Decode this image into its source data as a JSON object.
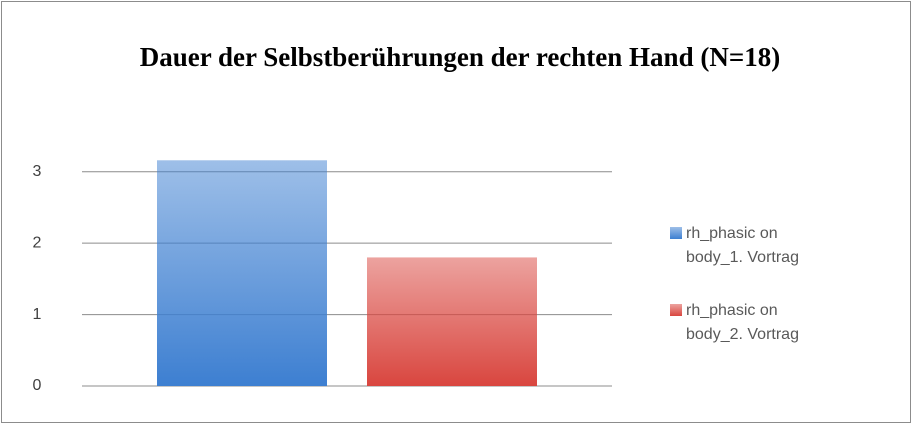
{
  "chart_data": {
    "type": "bar",
    "title": "Dauer der Selbstberührungen der rechten Hand (N=18)",
    "categories": [
      null
    ],
    "series": [
      {
        "name": "rh_phasic on body_1. Vortrag",
        "color": "#3d7fd1",
        "values": [
          3.16
        ]
      },
      {
        "name": "rh_phasic on body_2. Vortrag",
        "color": "#d9463f",
        "values": [
          1.8
        ]
      }
    ],
    "ylim": [
      0,
      3.5
    ],
    "yticks": [
      0,
      1,
      2,
      3
    ],
    "grid": true,
    "legend": "right"
  }
}
